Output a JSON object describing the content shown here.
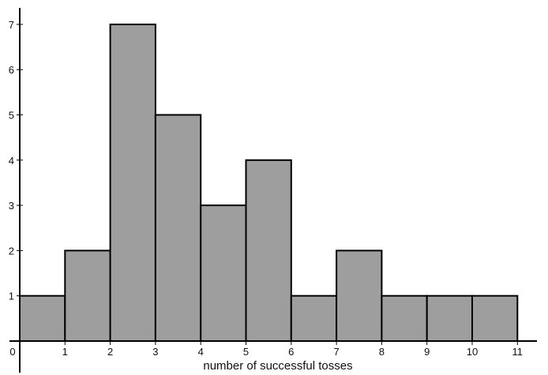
{
  "chart_data": {
    "type": "bar",
    "bins": [
      {
        "from": 0,
        "to": 1,
        "value": 1
      },
      {
        "from": 1,
        "to": 2,
        "value": 2
      },
      {
        "from": 2,
        "to": 3,
        "value": 7
      },
      {
        "from": 3,
        "to": 4,
        "value": 5
      },
      {
        "from": 4,
        "to": 5,
        "value": 3
      },
      {
        "from": 5,
        "to": 6,
        "value": 4
      },
      {
        "from": 6,
        "to": 7,
        "value": 1
      },
      {
        "from": 7,
        "to": 8,
        "value": 2
      },
      {
        "from": 8,
        "to": 9,
        "value": 1
      },
      {
        "from": 9,
        "to": 10,
        "value": 1
      },
      {
        "from": 10,
        "to": 11,
        "value": 1
      }
    ],
    "x_ticks": [
      "0",
      "1",
      "2",
      "3",
      "4",
      "5",
      "6",
      "7",
      "8",
      "9",
      "10",
      "11"
    ],
    "y_ticks": [
      "1",
      "2",
      "3",
      "4",
      "5",
      "6",
      "7"
    ],
    "xlabel": "number of successful tosses",
    "ylabel": "",
    "title": "",
    "xlim": [
      0,
      11.4
    ],
    "ylim": [
      0,
      7.7
    ],
    "grid": false,
    "bar_color": "#9e9e9e"
  }
}
